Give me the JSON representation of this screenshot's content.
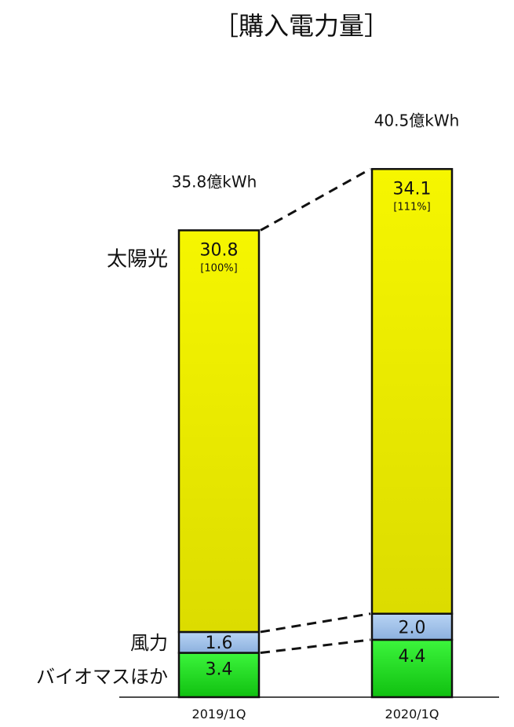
{
  "chart_data": {
    "type": "bar",
    "stacked": true,
    "title": "［購入電力量］",
    "categories": [
      "2019/1Q",
      "2020/1Q"
    ],
    "totals": [
      "35.8億kWh",
      "40.5億kWh"
    ],
    "series": [
      {
        "name": "バイオマスほか",
        "values": [
          3.4,
          4.4
        ],
        "labels": [
          "3.4",
          "4.4"
        ],
        "color": "#22ee22"
      },
      {
        "name": "風力",
        "values": [
          1.6,
          2.0
        ],
        "labels": [
          "1.6",
          "2.0"
        ],
        "color": "#a0c0e8"
      },
      {
        "name": "太陽光",
        "values": [
          30.8,
          34.1
        ],
        "labels": [
          "30.8",
          "34.1"
        ],
        "color": "#f2f200",
        "index_labels": [
          "[100%]",
          "[111%]"
        ]
      }
    ],
    "xlabel": "",
    "ylabel": "",
    "grid": false,
    "legend": "left"
  }
}
